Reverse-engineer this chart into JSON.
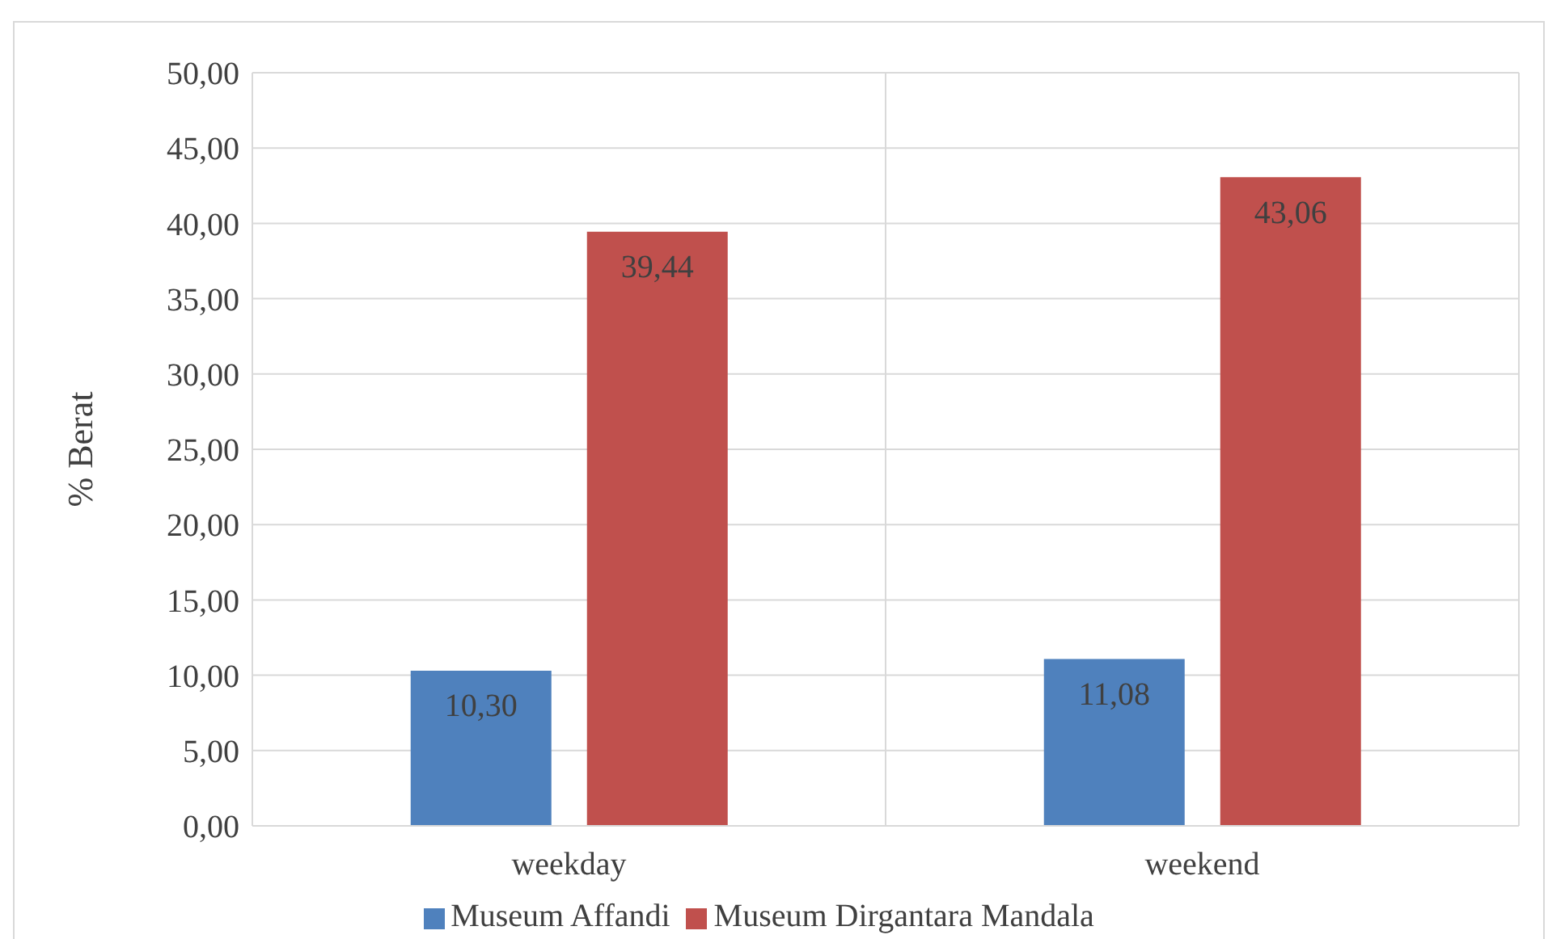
{
  "chart_data": {
    "type": "bar",
    "ylabel": "% Berat",
    "categories": [
      "weekday",
      "weekend"
    ],
    "series": [
      {
        "name": "Museum Affandi",
        "color": "#4f81bd",
        "values": [
          10.3,
          11.08
        ],
        "value_labels": [
          "10,30",
          "11,08"
        ]
      },
      {
        "name": "Museum Dirgantara Mandala",
        "color": "#c0504d",
        "values": [
          39.44,
          43.06
        ],
        "value_labels": [
          "39,44",
          "43,06"
        ]
      }
    ],
    "ylim": [
      0,
      50
    ],
    "yticks": [
      {
        "value": 0,
        "label": "0,00"
      },
      {
        "value": 5,
        "label": "5,00"
      },
      {
        "value": 10,
        "label": "10,00"
      },
      {
        "value": 15,
        "label": "15,00"
      },
      {
        "value": 20,
        "label": "20,00"
      },
      {
        "value": 25,
        "label": "25,00"
      },
      {
        "value": 30,
        "label": "30,00"
      },
      {
        "value": 35,
        "label": "35,00"
      },
      {
        "value": 40,
        "label": "40,00"
      },
      {
        "value": 45,
        "label": "45,00"
      },
      {
        "value": 50,
        "label": "50,00"
      }
    ],
    "grid": true,
    "legend": "bottom"
  }
}
